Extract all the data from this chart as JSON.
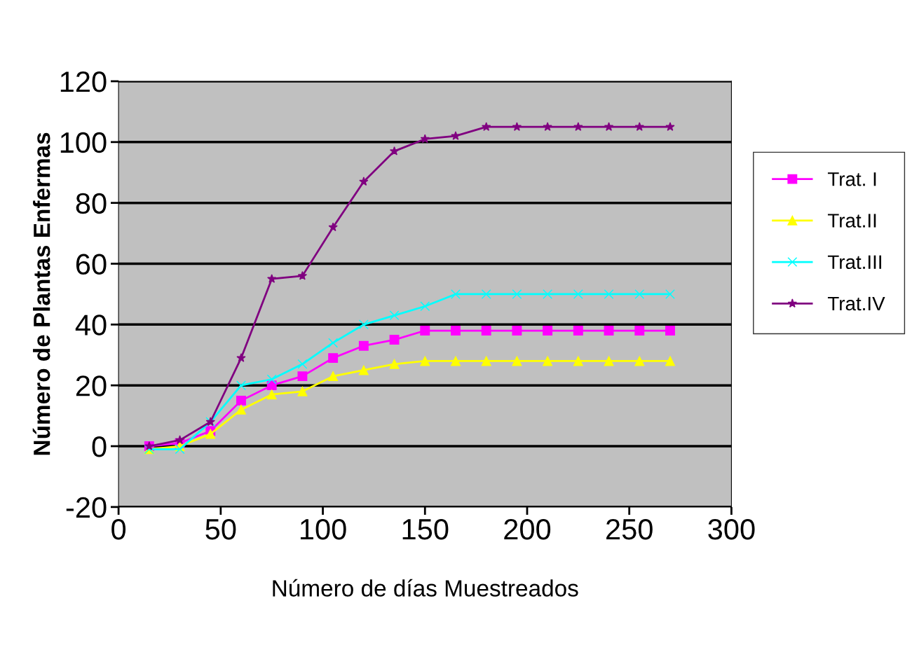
{
  "chart_data": {
    "type": "line",
    "xlabel": "Número de días Muestreados",
    "ylabel": "Número de Plantas Enfermas",
    "x": [
      15,
      30,
      45,
      60,
      75,
      90,
      105,
      120,
      135,
      150,
      165,
      180,
      195,
      210,
      225,
      240,
      255,
      270
    ],
    "series": [
      {
        "name": "Trat. I",
        "color": "#ff00ff",
        "marker": "square",
        "values": [
          0,
          1,
          5,
          15,
          20,
          23,
          29,
          33,
          35,
          38,
          38,
          38,
          38,
          38,
          38,
          38,
          38,
          38
        ]
      },
      {
        "name": "Trat.II",
        "color": "#ffff00",
        "marker": "triangle",
        "values": [
          -1,
          0,
          4,
          12,
          17,
          18,
          23,
          25,
          27,
          28,
          28,
          28,
          28,
          28,
          28,
          28,
          28,
          28
        ]
      },
      {
        "name": "Trat.III",
        "color": "#00ffff",
        "marker": "cross",
        "values": [
          -1,
          -1,
          8,
          20,
          22,
          27,
          34,
          40,
          43,
          46,
          50,
          50,
          50,
          50,
          50,
          50,
          50,
          50
        ]
      },
      {
        "name": "Trat.IV",
        "color": "#800080",
        "marker": "star",
        "values": [
          0,
          2,
          8,
          29,
          55,
          56,
          72,
          87,
          97,
          101,
          102,
          105,
          105,
          105,
          105,
          105,
          105,
          105
        ]
      }
    ],
    "xlim": [
      0,
      300
    ],
    "xticks": [
      0,
      50,
      100,
      150,
      200,
      250,
      300
    ],
    "ylim": [
      -20,
      120
    ],
    "yticks": [
      -20,
      0,
      20,
      40,
      60,
      80,
      100,
      120
    ],
    "grid": "y",
    "legend": "right",
    "line_style": "solid"
  }
}
